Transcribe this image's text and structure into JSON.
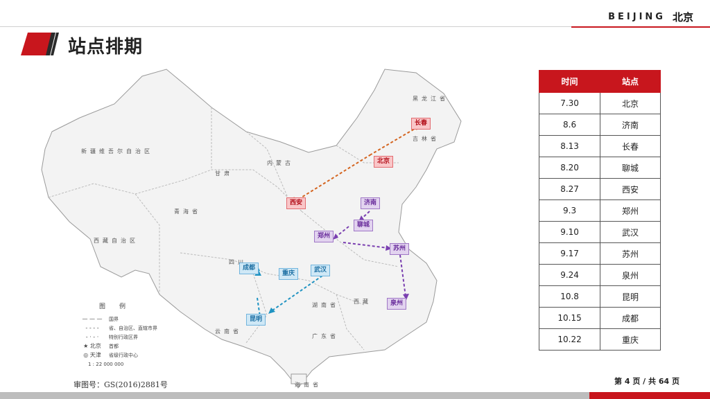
{
  "header": {
    "brand_en": "BEIJING",
    "brand_cn": "北京"
  },
  "page_title": "站点排期",
  "map": {
    "region_labels": [
      "新疆维吾尔自治区",
      "西藏自治区",
      "青海省",
      "甘肃",
      "内蒙古",
      "黑龙江省",
      "吉林省",
      "四川",
      "云南省",
      "湖南省",
      "西藏",
      "广东省",
      "海南省"
    ],
    "city_tags": [
      {
        "name": "长春",
        "style": "red"
      },
      {
        "name": "北京",
        "style": "red"
      },
      {
        "name": "西安",
        "style": "red"
      },
      {
        "name": "济南",
        "style": "purple"
      },
      {
        "name": "聊城",
        "style": "purple"
      },
      {
        "name": "郑州",
        "style": "purple"
      },
      {
        "name": "苏州",
        "style": "purple"
      },
      {
        "name": "泉州",
        "style": "purple"
      },
      {
        "name": "成都",
        "style": "blue"
      },
      {
        "name": "重庆",
        "style": "blue"
      },
      {
        "name": "武汉",
        "style": "blue"
      },
      {
        "name": "昆明",
        "style": "blue"
      }
    ],
    "legend": {
      "title": "图例",
      "items": [
        {
          "symbol": "— — —",
          "label": "国界"
        },
        {
          "symbol": "- - - -",
          "label": "省、自治区、直辖市界"
        },
        {
          "symbol": "- · - ·",
          "label": "特别行政区界"
        },
        {
          "symbol": "★ 北京",
          "label": "首都"
        },
        {
          "symbol": "◎ 天津",
          "label": "省级行政中心"
        }
      ],
      "scale": "1 : 22 000 000"
    },
    "review_number": "审图号：GS(2016)2881号",
    "route_colors": {
      "red_route": "#d4641f",
      "purple_route": "#7a3fb0",
      "blue_route": "#1f93c2"
    }
  },
  "schedule": {
    "headers": [
      "时间",
      "站点"
    ],
    "rows": [
      {
        "date": "7.30",
        "site": "北京"
      },
      {
        "date": "8.6",
        "site": "济南"
      },
      {
        "date": "8.13",
        "site": "长春"
      },
      {
        "date": "8.20",
        "site": "聊城"
      },
      {
        "date": "8.27",
        "site": "西安"
      },
      {
        "date": "9.3",
        "site": "郑州"
      },
      {
        "date": "9.10",
        "site": "武汉"
      },
      {
        "date": "9.17",
        "site": "苏州"
      },
      {
        "date": "9.24",
        "site": "泉州"
      },
      {
        "date": "10.8",
        "site": "昆明"
      },
      {
        "date": "10.15",
        "site": "成都"
      },
      {
        "date": "10.22",
        "site": "重庆"
      }
    ]
  },
  "footer": {
    "page_indicator": "第 4 页 / 共 64 页"
  },
  "colors": {
    "brand_red": "#c8161d",
    "footer_gray": "#bdbdbd"
  }
}
